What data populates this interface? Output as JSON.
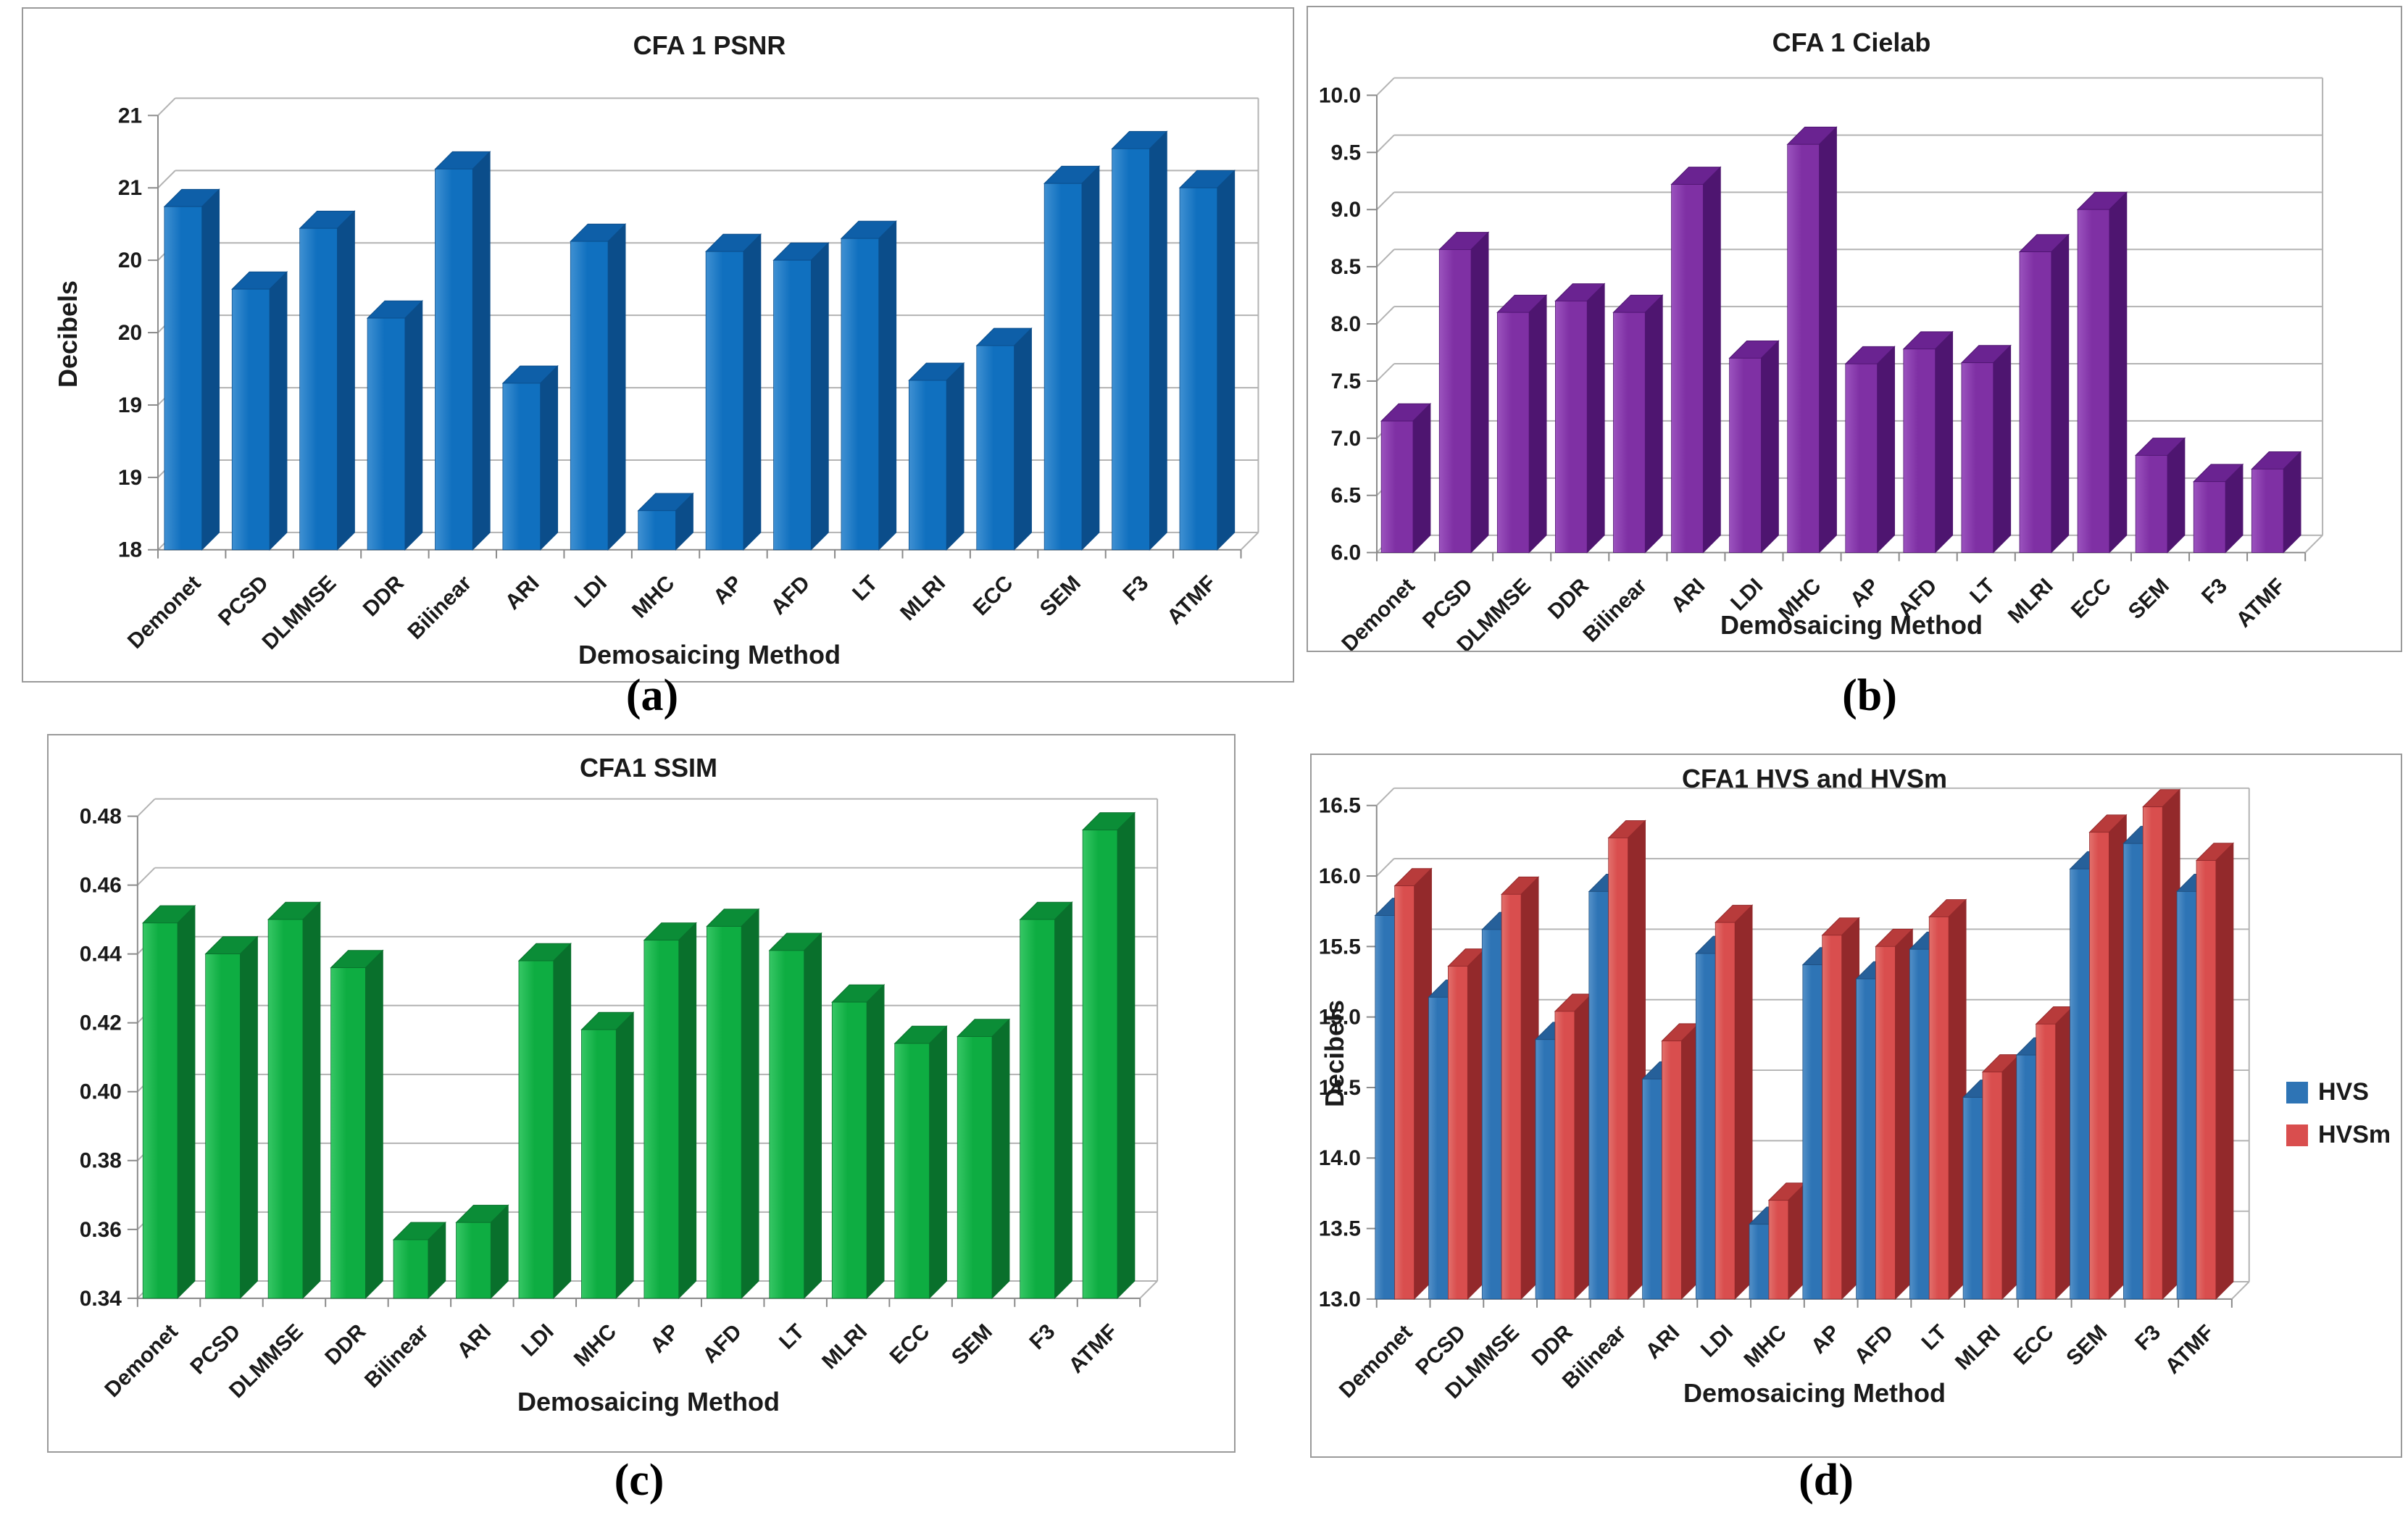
{
  "figure": {
    "description_visible_panels": 4
  },
  "chart_data": [
    {
      "id": "a",
      "type": "bar",
      "caption": "(a)",
      "title": "CFA 1 PSNR",
      "xlabel": "Demosaicing Method",
      "ylabel": "Decibels",
      "ylim": [
        18,
        21
      ],
      "grid": true,
      "legend_position": null,
      "y_ticks": [
        {
          "value": 21.0,
          "label": "21"
        },
        {
          "value": 20.5,
          "label": "21"
        },
        {
          "value": 20.0,
          "label": "20"
        },
        {
          "value": 19.5,
          "label": "20"
        },
        {
          "value": 19.0,
          "label": "19"
        },
        {
          "value": 18.5,
          "label": "19"
        },
        {
          "value": 18.0,
          "label": "18"
        }
      ],
      "categories": [
        "Demonet",
        "PCSD",
        "DLMMSE",
        "DDR",
        "Bilinear",
        "ARI",
        "LDI",
        "MHC",
        "AP",
        "AFD",
        "LT",
        "MLRI",
        "ECC",
        "SEM",
        "F3",
        "ATMF"
      ],
      "series": [
        {
          "color": "#1070BF",
          "color_light": "#3F90D2",
          "color_top": "#0E5FA8",
          "color_side": "#0B4D8A",
          "values": [
            20.37,
            19.8,
            20.22,
            19.6,
            20.63,
            19.15,
            20.13,
            18.27,
            20.06,
            20.0,
            20.15,
            19.17,
            19.41,
            20.53,
            20.77,
            20.5
          ]
        }
      ]
    },
    {
      "id": "b",
      "type": "bar",
      "caption": "(b)",
      "title": "CFA 1 Cielab",
      "xlabel": "Demosaicing Method",
      "ylabel": "",
      "ylim": [
        6.0,
        10.0
      ],
      "grid": true,
      "legend_position": null,
      "y_ticks": [
        {
          "value": 10.0,
          "label": "10.0"
        },
        {
          "value": 9.5,
          "label": "9.5"
        },
        {
          "value": 9.0,
          "label": "9.0"
        },
        {
          "value": 8.5,
          "label": "8.5"
        },
        {
          "value": 8.0,
          "label": "8.0"
        },
        {
          "value": 7.5,
          "label": "7.5"
        },
        {
          "value": 7.0,
          "label": "7.0"
        },
        {
          "value": 6.5,
          "label": "6.5"
        },
        {
          "value": 6.0,
          "label": "6.0"
        }
      ],
      "categories": [
        "Demonet",
        "PCSD",
        "DLMMSE",
        "DDR",
        "Bilinear",
        "ARI",
        "LDI",
        "MHC",
        "AP",
        "AFD",
        "LT",
        "MLRI",
        "ECC",
        "SEM",
        "F3",
        "ATMF"
      ],
      "series": [
        {
          "color": "#7F30A4",
          "color_light": "#9B53BE",
          "color_top": "#6A2391",
          "color_side": "#4E1570",
          "values": [
            7.15,
            8.65,
            8.1,
            8.2,
            8.1,
            9.22,
            7.7,
            9.57,
            7.65,
            7.78,
            7.66,
            8.63,
            9.0,
            6.85,
            6.62,
            6.73
          ]
        }
      ]
    },
    {
      "id": "c",
      "type": "bar",
      "caption": "(c)",
      "title": "CFA1 SSIM",
      "xlabel": "Demosaicing Method",
      "ylabel": "",
      "ylim": [
        0.34,
        0.48
      ],
      "grid": true,
      "legend_position": null,
      "y_ticks": [
        {
          "value": 0.48,
          "label": "0.48"
        },
        {
          "value": 0.46,
          "label": "0.46"
        },
        {
          "value": 0.44,
          "label": "0.44"
        },
        {
          "value": 0.42,
          "label": "0.42"
        },
        {
          "value": 0.4,
          "label": "0.40"
        },
        {
          "value": 0.38,
          "label": "0.38"
        },
        {
          "value": 0.36,
          "label": "0.36"
        },
        {
          "value": 0.34,
          "label": "0.34"
        }
      ],
      "categories": [
        "Demonet",
        "PCSD",
        "DLMMSE",
        "DDR",
        "Bilinear",
        "ARI",
        "LDI",
        "MHC",
        "AP",
        "AFD",
        "LT",
        "MLRI",
        "ECC",
        "SEM",
        "F3",
        "ATMF"
      ],
      "series": [
        {
          "color": "#0EAD42",
          "color_light": "#36C765",
          "color_top": "#0B8D37",
          "color_side": "#09702C",
          "values": [
            0.449,
            0.44,
            0.45,
            0.436,
            0.357,
            0.362,
            0.438,
            0.418,
            0.444,
            0.448,
            0.441,
            0.426,
            0.414,
            0.416,
            0.45,
            0.476
          ]
        }
      ]
    },
    {
      "id": "d",
      "type": "bar",
      "caption": "(d)",
      "title": "CFA1 HVS and HVSm",
      "xlabel": "Demosaicing Method",
      "ylabel": "Decibels",
      "ylim": [
        13.0,
        16.5
      ],
      "grid": true,
      "legend_position": "right",
      "y_ticks": [
        {
          "value": 16.5,
          "label": "16.5"
        },
        {
          "value": 16.0,
          "label": "16.0"
        },
        {
          "value": 15.5,
          "label": "15.5"
        },
        {
          "value": 15.0,
          "label": "15.0"
        },
        {
          "value": 14.5,
          "label": "14.5"
        },
        {
          "value": 14.0,
          "label": "14.0"
        },
        {
          "value": 13.5,
          "label": "13.5"
        },
        {
          "value": 13.0,
          "label": "13.0"
        }
      ],
      "categories": [
        "Demonet",
        "PCSD",
        "DLMMSE",
        "DDR",
        "Bilinear",
        "ARI",
        "LDI",
        "MHC",
        "AP",
        "AFD",
        "LT",
        "MLRI",
        "ECC",
        "SEM",
        "F3",
        "ATMF"
      ],
      "series": [
        {
          "name": "HVS",
          "color": "#2E74B5",
          "color_light": "#5390C8",
          "color_top": "#26609A",
          "color_side": "#1F4F80",
          "values": [
            15.72,
            15.14,
            15.62,
            14.84,
            15.89,
            14.56,
            15.45,
            13.53,
            15.37,
            15.27,
            15.48,
            14.43,
            14.73,
            16.05,
            16.23,
            15.89
          ]
        },
        {
          "name": "HVSm",
          "color": "#D94E4E",
          "color_light": "#E2706C",
          "color_top": "#B83B3B",
          "color_side": "#93292B",
          "values": [
            15.93,
            15.36,
            15.87,
            15.04,
            16.27,
            14.83,
            15.67,
            13.7,
            15.58,
            15.5,
            15.71,
            14.61,
            14.95,
            16.31,
            16.49,
            16.11
          ]
        }
      ]
    }
  ]
}
